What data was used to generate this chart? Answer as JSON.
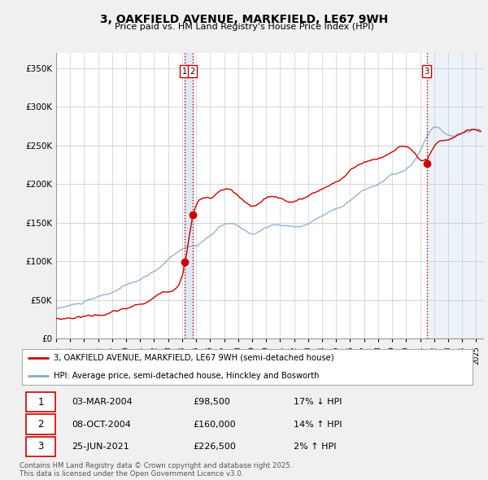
{
  "title": "3, OAKFIELD AVENUE, MARKFIELD, LE67 9WH",
  "subtitle": "Price paid vs. HM Land Registry's House Price Index (HPI)",
  "background_color": "#f0f0f0",
  "plot_bg_color": "#ffffff",
  "transactions": [
    {
      "label": "1",
      "date": "03-MAR-2004",
      "price": 98500,
      "pct": "17%",
      "dir": "↓",
      "x_year": 2004.17
    },
    {
      "label": "2",
      "date": "08-OCT-2004",
      "price": 160000,
      "pct": "14%",
      "dir": "↑",
      "x_year": 2004.75
    },
    {
      "label": "3",
      "date": "25-JUN-2021",
      "price": 226500,
      "pct": "2%",
      "dir": "↑",
      "x_year": 2021.48
    }
  ],
  "vline_color": "#cc0000",
  "vline_style": ":",
  "shade_color": "#d0e0f0",
  "legend_entries": [
    "3, OAKFIELD AVENUE, MARKFIELD, LE67 9WH (semi-detached house)",
    "HPI: Average price, semi-detached house, Hinckley and Bosworth"
  ],
  "footer": "Contains HM Land Registry data © Crown copyright and database right 2025.\nThis data is licensed under the Open Government Licence v3.0.",
  "yticks": [
    0,
    50000,
    100000,
    150000,
    200000,
    250000,
    300000,
    350000
  ],
  "ylim": [
    0,
    370000
  ],
  "xlim_start": 1995.0,
  "xlim_end": 2025.5,
  "line_color_red": "#cc0000",
  "line_color_blue": "#88aacc",
  "marker_color": "#cc0000",
  "label_box_color": "#cc0000"
}
